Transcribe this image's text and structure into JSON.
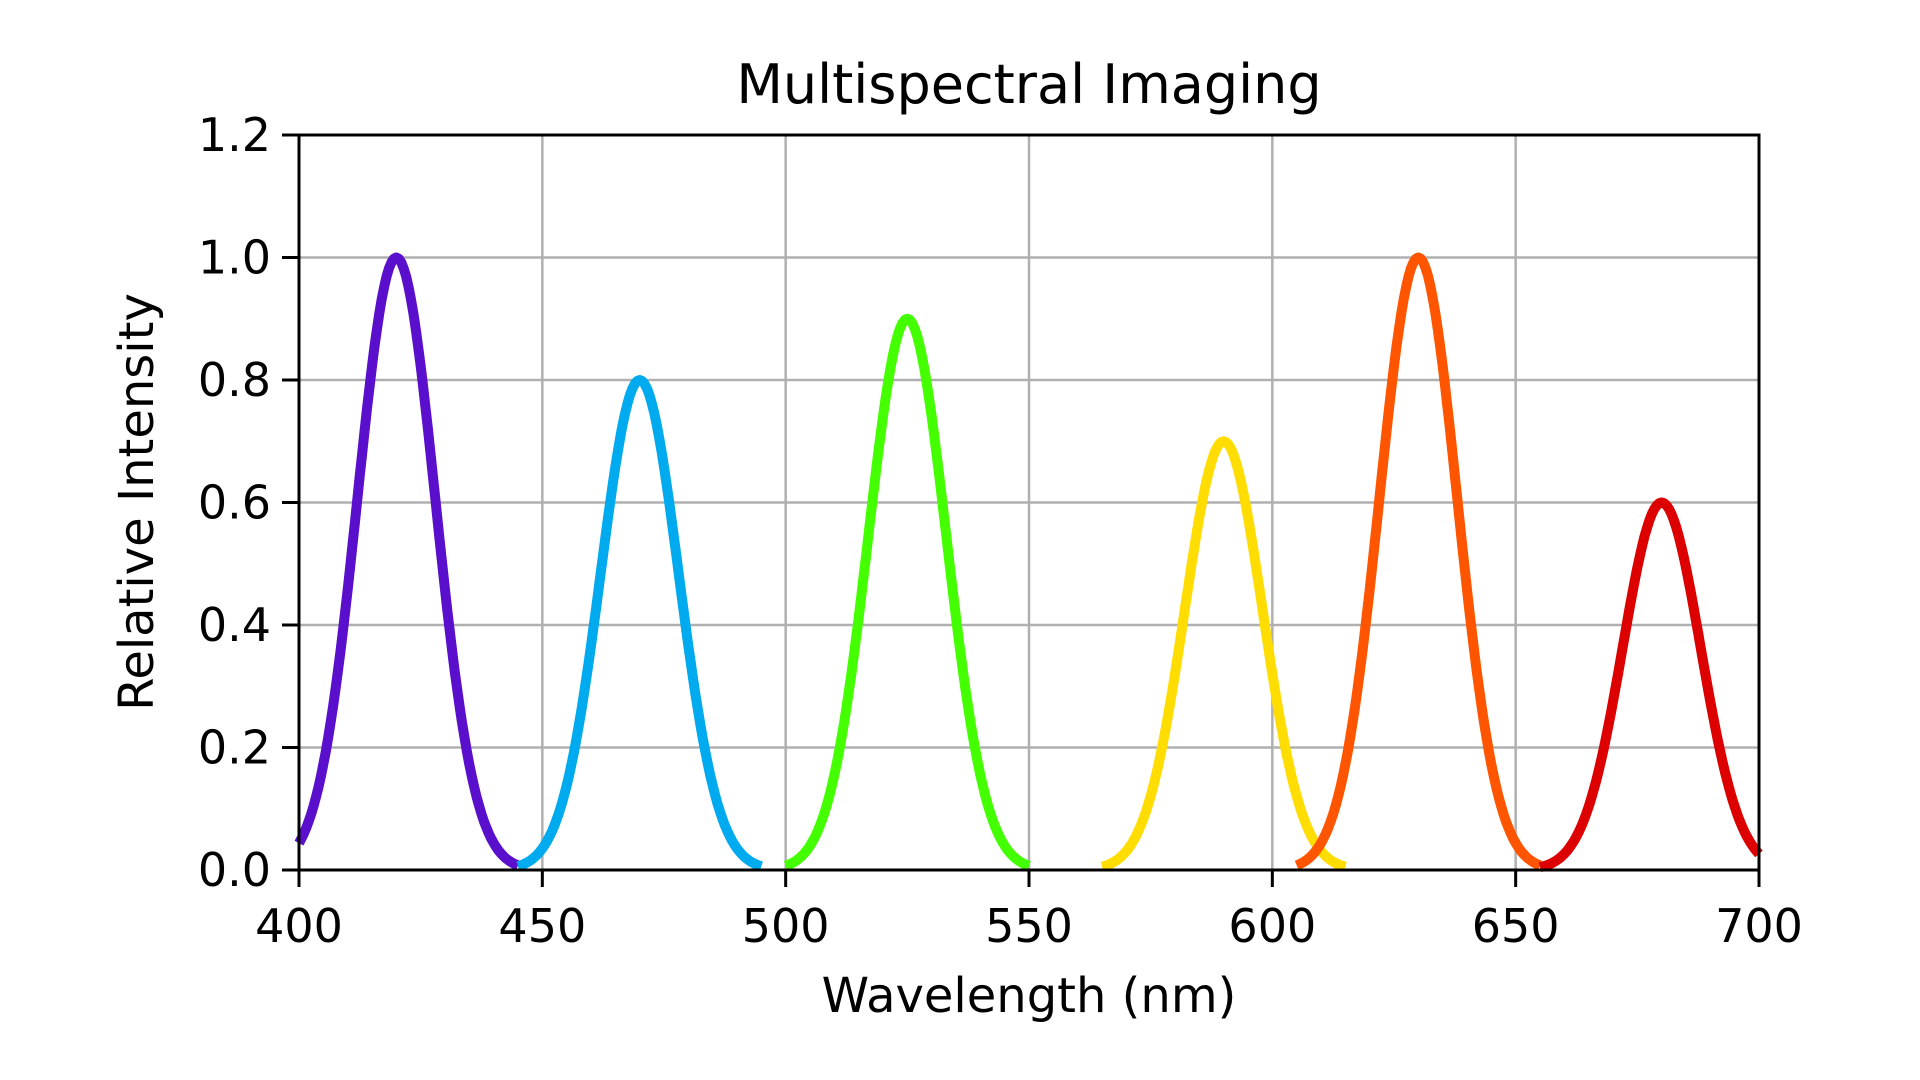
{
  "chart_data": {
    "type": "line",
    "title": "Multispectral Imaging",
    "xlabel": "Wavelength (nm)",
    "ylabel": "Relative Intensity",
    "xlim": [
      400,
      700
    ],
    "ylim": [
      0,
      1.2
    ],
    "xticks": [
      "400",
      "450",
      "500",
      "550",
      "600",
      "650",
      "700"
    ],
    "yticks": [
      "0.0",
      "0.2",
      "0.4",
      "0.6",
      "0.8",
      "1.0",
      "1.2"
    ],
    "grid": true,
    "legend": "none",
    "curve_shape": "gaussian",
    "sigma_nm": 8,
    "series": [
      {
        "center": 420,
        "peak": 1.0,
        "range": [
          400,
          445
        ],
        "color": "#5a0fcc"
      },
      {
        "center": 470,
        "peak": 0.8,
        "range": [
          445,
          495
        ],
        "color": "#00aaee"
      },
      {
        "center": 525,
        "peak": 0.9,
        "range": [
          500,
          550
        ],
        "color": "#44ff00"
      },
      {
        "center": 590,
        "peak": 0.7,
        "range": [
          565,
          615
        ],
        "color": "#ffdd00"
      },
      {
        "center": 630,
        "peak": 1.0,
        "range": [
          605,
          655
        ],
        "color": "#ff5500"
      },
      {
        "center": 680,
        "peak": 0.6,
        "range": [
          655,
          700
        ],
        "color": "#dd0000"
      }
    ]
  }
}
